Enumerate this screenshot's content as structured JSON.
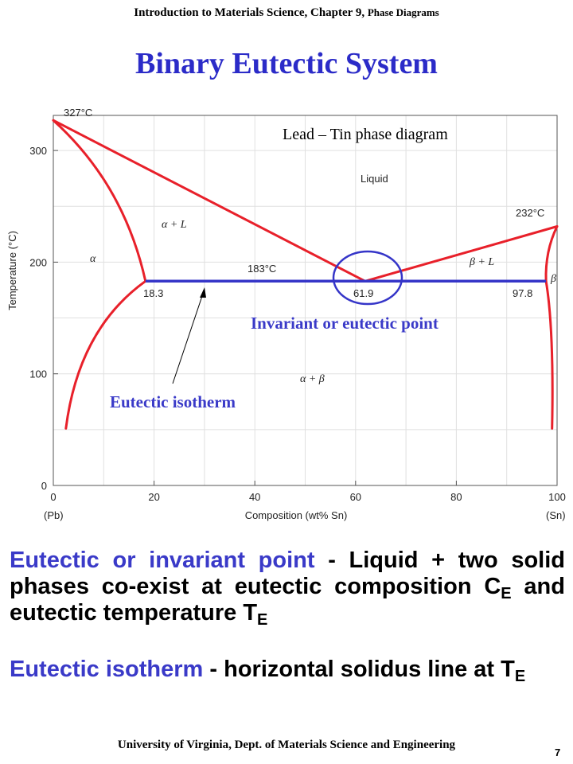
{
  "header": {
    "course": "Introduction to Materials Science, Chapter 9,",
    "topic": "Phase Diagrams"
  },
  "title": "Binary Eutectic System",
  "diagram": {
    "subtitle": "Lead – Tin phase diagram",
    "x_axis_label": "Composition (wt% Sn)",
    "y_axis_label": "Temperature (°C)",
    "x_ticks": [
      "0",
      "20",
      "40",
      "60",
      "80",
      "100"
    ],
    "y_ticks": [
      "0",
      "100",
      "200",
      "300"
    ],
    "left_component": "(Pb)",
    "right_component": "(Sn)",
    "phase_liquid": "Liquid",
    "phase_alpha_L": "α + L",
    "phase_beta_L": "β + L",
    "phase_alpha": "α",
    "phase_beta": "β",
    "phase_alpha_beta": "α + β",
    "temp_pb_melt": "327°C",
    "temp_sn_melt": "232°C",
    "temp_eutectic": "183°C",
    "comp_alpha": "18.3",
    "comp_eutectic": "61.9",
    "comp_beta": "97.8",
    "annotation_point": "Invariant or eutectic point",
    "annotation_isotherm": "Eutectic isotherm",
    "colors": {
      "curve": "#e8202a",
      "isotherm": "#3535c8",
      "annotation": "#3a3ac8"
    }
  },
  "chart_data": {
    "type": "line",
    "title": "Lead – Tin phase diagram",
    "xlabel": "Composition (wt% Sn)",
    "ylabel": "Temperature (°C)",
    "xlim": [
      0,
      100
    ],
    "ylim": [
      0,
      340
    ],
    "series": [
      {
        "values": [
          [
            0,
            327
          ],
          [
            61.9,
            183
          ]
        ]
      },
      {
        "values": [
          [
            61.9,
            183
          ],
          [
            100,
            232
          ]
        ]
      },
      {
        "values": [
          [
            0,
            327
          ],
          [
            18.3,
            183
          ]
        ]
      },
      {
        "values": [
          [
            18.3,
            183
          ],
          [
            2.5,
            51
          ]
        ]
      },
      {
        "values": [
          [
            100,
            232
          ],
          [
            97.8,
            183
          ],
          [
            99,
            51
          ]
        ]
      },
      {
        "values": [
          [
            18.3,
            183
          ],
          [
            97.8,
            183
          ]
        ]
      }
    ]
  },
  "text": {
    "p1_term": "Eutectic or invariant point",
    "p1_rest": " - Liquid + two solid phases co-exist at eutectic composition C",
    "p1_sub1": "E",
    "p1_mid": " and eutectic temperature T",
    "p1_sub2": "E",
    "p2_term": "Eutectic isotherm",
    "p2_rest": " - horizontal solidus line at T",
    "p2_sub": "E"
  },
  "footer": {
    "university": "University of Virginia, Dept. of Materials Science and Engineering",
    "page": "7"
  }
}
